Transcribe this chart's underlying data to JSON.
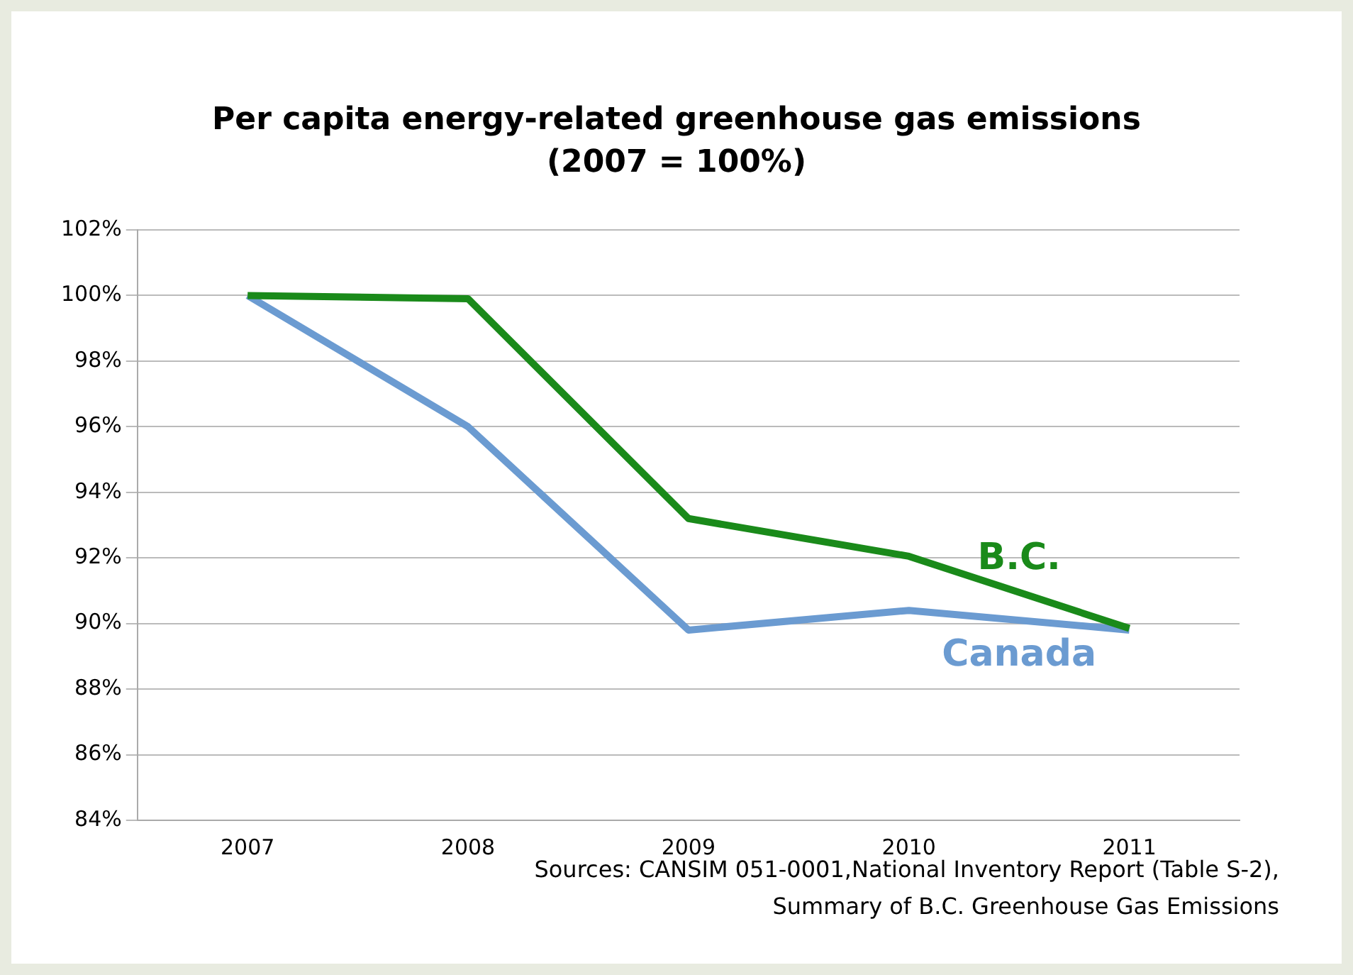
{
  "chart_data": {
    "type": "line",
    "title": "Per capita energy-related greenhouse gas emissions",
    "subtitle": "(2007 = 100%)",
    "categories": [
      "2007",
      "2008",
      "2009",
      "2010",
      "2011"
    ],
    "series": [
      {
        "name": "B.C.",
        "color": "#1a8a1a",
        "values": [
          100,
          99.9,
          93.2,
          92.05,
          89.85
        ]
      },
      {
        "name": "Canada",
        "color": "#6b9bd1",
        "values": [
          100,
          96.0,
          89.8,
          90.4,
          89.8
        ]
      }
    ],
    "ylim": [
      84,
      102
    ],
    "yticks": [
      {
        "value": 84,
        "label": "84%"
      },
      {
        "value": 86,
        "label": "86%"
      },
      {
        "value": 88,
        "label": "88%"
      },
      {
        "value": 90,
        "label": "90%"
      },
      {
        "value": 92,
        "label": "92%"
      },
      {
        "value": 94,
        "label": "94%"
      },
      {
        "value": 96,
        "label": "96%"
      },
      {
        "value": 98,
        "label": "98%"
      },
      {
        "value": 100,
        "label": "100%"
      },
      {
        "value": 102,
        "label": "102%"
      }
    ],
    "grid": "y",
    "legend": false,
    "marker": "none",
    "line_style": "solid",
    "annotations": [
      "Sources: CANSIM 051-0001,National Inventory Report (Table S-2),",
      "Summary of B.C. Greenhouse Gas Emissions"
    ]
  }
}
